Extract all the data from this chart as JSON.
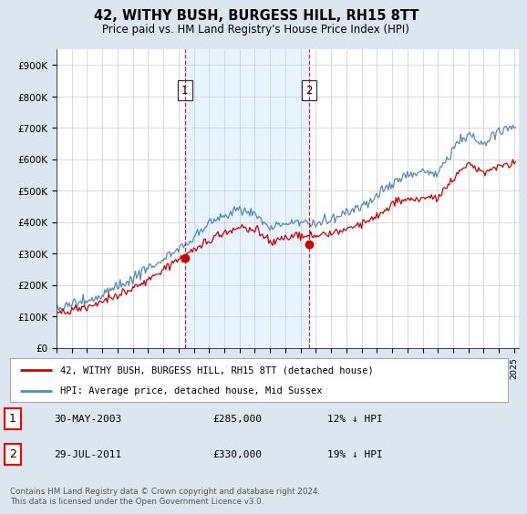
{
  "title": "42, WITHY BUSH, BURGESS HILL, RH15 8TT",
  "subtitle": "Price paid vs. HM Land Registry's House Price Index (HPI)",
  "legend_line1": "42, WITHY BUSH, BURGESS HILL, RH15 8TT (detached house)",
  "legend_line2": "HPI: Average price, detached house, Mid Sussex",
  "sale1_date": "30-MAY-2003",
  "sale1_price": "£285,000",
  "sale1_hpi": "12% ↓ HPI",
  "sale1_year": 2003.42,
  "sale1_value": 285000,
  "sale2_date": "29-JUL-2011",
  "sale2_price": "£330,000",
  "sale2_hpi": "19% ↓ HPI",
  "sale2_year": 2011.58,
  "sale2_value": 330000,
  "ylim_min": 0,
  "ylim_max": 950000,
  "xlim_min": 1995.0,
  "xlim_max": 2025.3,
  "red_color": "#cc0000",
  "blue_color": "#5588bb",
  "shade_color": "#ddeeff",
  "background_color": "#dce6f1",
  "plot_bg_color": "#ffffff",
  "footer_text": "Contains HM Land Registry data © Crown copyright and database right 2024.\nThis data is licensed under the Open Government Licence v3.0.",
  "yticks": [
    0,
    100000,
    200000,
    300000,
    400000,
    500000,
    600000,
    700000,
    800000,
    900000
  ],
  "ytick_labels": [
    "£0",
    "£100K",
    "£200K",
    "£300K",
    "£400K",
    "£500K",
    "£600K",
    "£700K",
    "£800K",
    "£900K"
  ]
}
